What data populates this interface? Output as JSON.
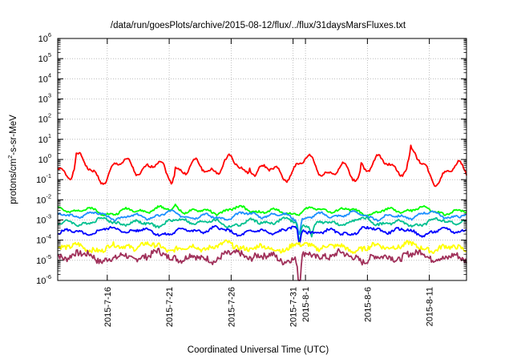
{
  "chart_data": {
    "type": "line",
    "title": "/data/run/goesPlots/archive/2015-08-12/flux/../flux/31daysMarsFluxes.txt",
    "xlabel": "Coordinated Universal Time (UTC)",
    "ylabel_parts": [
      "protons/cm",
      "2",
      "-s-sr-MeV"
    ],
    "y_scale": "log",
    "ylim_exponents": [
      -6,
      6
    ],
    "y_tick_base": "10",
    "y_tick_exponents": [
      "-6",
      "-5",
      "-4",
      "-3",
      "-2",
      "-1",
      "0",
      "1",
      "2",
      "3",
      "4",
      "5",
      "6"
    ],
    "x_range": [
      "2015-07-12",
      "2015-08-14"
    ],
    "x_ticks": [
      {
        "date": "2015-07-16",
        "label": "2015-7-16"
      },
      {
        "date": "2015-07-21",
        "label": "2015-7-21"
      },
      {
        "date": "2015-07-26",
        "label": "2015-7-26"
      },
      {
        "date": "2015-07-31",
        "label": "2015-7-31"
      },
      {
        "date": "2015-08-01",
        "label": "2015-8-1"
      },
      {
        "date": "2015-08-06",
        "label": "2015-8-6"
      },
      {
        "date": "2015-08-11",
        "label": "2015-8-11"
      }
    ],
    "grid": true,
    "series": [
      {
        "color": "#ff0000",
        "base": 0.3,
        "var": 0.38,
        "noise": 0.06,
        "seed": 1,
        "events": [
          {
            "date": "2015-07-13",
            "factor": 5
          },
          {
            "date": "2015-07-21",
            "factor": 5
          },
          {
            "date": "2015-07-27",
            "factor": 4
          },
          {
            "date": "2015-08-05",
            "factor": 6
          },
          {
            "date": "2015-08-09",
            "factor": 5
          }
        ]
      },
      {
        "color": "#00ff00",
        "base": 0.0028,
        "var": 0.12,
        "noise": 0.05,
        "seed": 2,
        "events": [
          {
            "date": "2015-07-21",
            "factor": 2
          }
        ]
      },
      {
        "color": "#1e90ff",
        "base": 0.0016,
        "var": 0.12,
        "noise": 0.05,
        "seed": 3,
        "events": [
          {
            "date": "2015-07-31",
            "factor": 0.2
          }
        ]
      },
      {
        "color": "#00c090",
        "base": 0.00075,
        "var": 0.12,
        "noise": 0.06,
        "seed": 4,
        "events": [
          {
            "date": "2015-07-31",
            "factor": 0.1
          },
          {
            "date": "2015-08-01",
            "factor": 0.3
          }
        ]
      },
      {
        "color": "#0000ff",
        "base": 0.00028,
        "var": 0.12,
        "noise": 0.06,
        "seed": 5,
        "events": [
          {
            "date": "2015-07-31",
            "factor": 0.15
          }
        ]
      },
      {
        "color": "#ffff00",
        "base": 4.5e-05,
        "var": 0.12,
        "noise": 0.12,
        "seed": 6,
        "events": []
      },
      {
        "color": "#a0305a",
        "base": 1.5e-05,
        "var": 0.14,
        "noise": 0.16,
        "seed": 7,
        "events": [
          {
            "date": "2015-07-31",
            "factor": 0.04
          }
        ]
      }
    ]
  }
}
